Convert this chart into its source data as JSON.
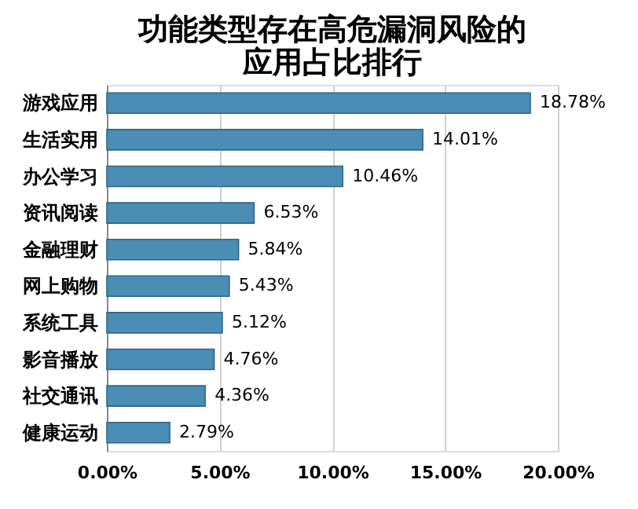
{
  "chart_data": {
    "type": "bar",
    "orientation": "horizontal",
    "title": "功能类型存在高危漏洞风险的应用占比排行",
    "categories": [
      "游戏应用",
      "生活实用",
      "办公学习",
      "资讯阅读",
      "金融理财",
      "网上购物",
      "系统工具",
      "影音播放",
      "社交通讯",
      "健康运动"
    ],
    "values": [
      18.78,
      14.01,
      10.46,
      6.53,
      5.84,
      5.43,
      5.12,
      4.76,
      4.36,
      2.79
    ],
    "value_labels": [
      "18.78%",
      "14.01%",
      "10.46%",
      "6.53%",
      "5.84%",
      "5.43%",
      "5.12%",
      "4.76%",
      "4.36%",
      "2.79%"
    ],
    "color": "#4a8db5",
    "xlim": [
      0,
      20
    ],
    "xticks": [
      {
        "value": 0,
        "label": "0.00%"
      },
      {
        "value": 5,
        "label": "5.00%"
      },
      {
        "value": 10,
        "label": "10.00%"
      },
      {
        "value": 15,
        "label": "15.00%"
      },
      {
        "value": 20,
        "label": "20.00%"
      }
    ],
    "grid": "x"
  }
}
